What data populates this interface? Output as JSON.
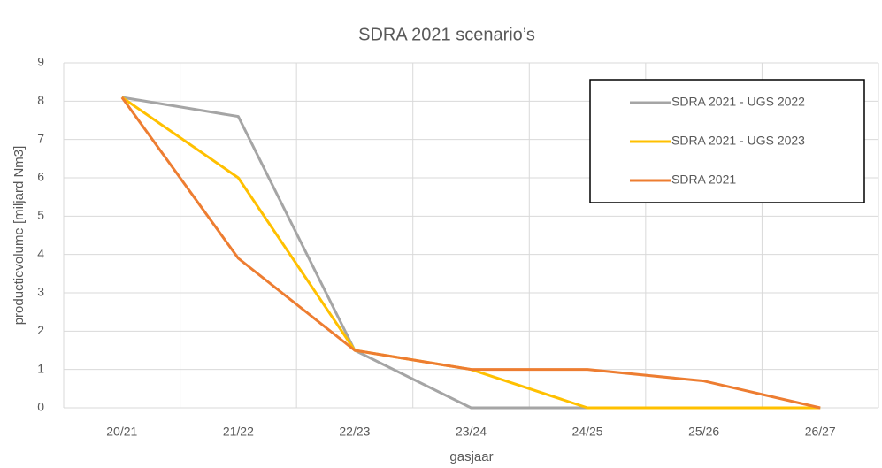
{
  "chart_data": {
    "type": "line",
    "title": "SDRA 2021 scenario’s",
    "x_label": "gasjaar",
    "y_label": "productievolume [miljard Nm3]",
    "categories": [
      "20/21",
      "21/22",
      "22/23",
      "23/24",
      "24/25",
      "25/26",
      "26/27"
    ],
    "series": [
      {
        "name": "SDRA 2021 - UGS 2022",
        "color": "#a5a5a5",
        "values": [
          8.1,
          7.6,
          1.5,
          0,
          0,
          0,
          0
        ]
      },
      {
        "name": "SDRA 2021 - UGS 2023",
        "color": "#ffc000",
        "values": [
          8.1,
          6.0,
          1.5,
          1.0,
          0,
          0,
          0
        ]
      },
      {
        "name": "SDRA 2021",
        "color": "#ed7d31",
        "values": [
          8.1,
          3.9,
          1.5,
          1.0,
          1.0,
          0.7,
          0
        ]
      }
    ],
    "ylim": [
      0,
      9
    ],
    "yticks": [
      0,
      1,
      2,
      3,
      4,
      5,
      6,
      7,
      8,
      9
    ],
    "grid": true,
    "legend": "upper right"
  }
}
